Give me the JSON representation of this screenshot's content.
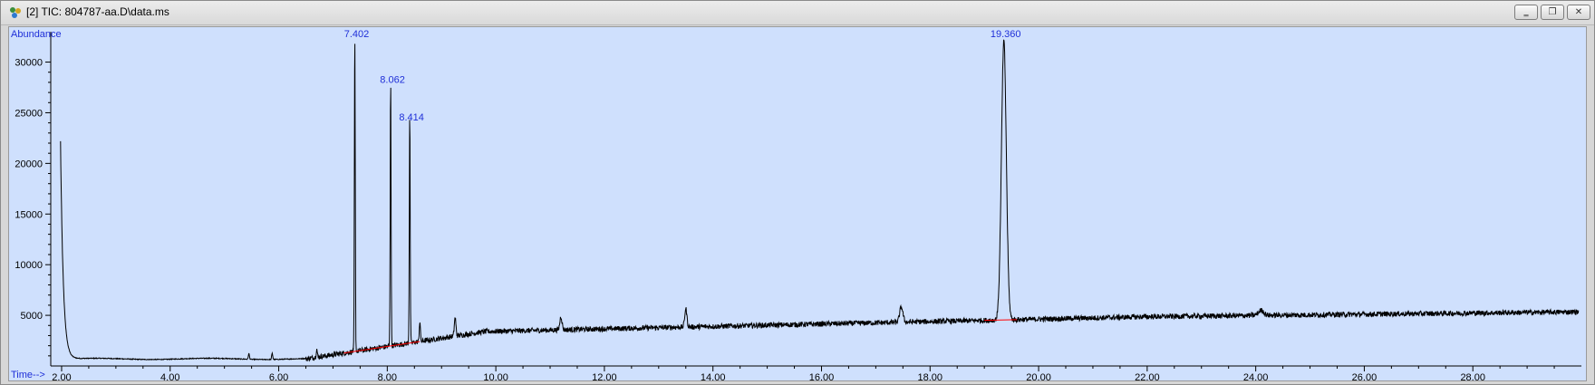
{
  "window": {
    "title": "[2] TIC: 804787-aa.D\\data.ms",
    "icon": "chromatogram-icon",
    "buttons": [
      "minimize",
      "restore",
      "close"
    ]
  },
  "colors": {
    "plot_bg": "#cfe0fd",
    "trace": "#000000",
    "baseline": "#ff0000",
    "labels": "#1f2fd8"
  },
  "chart_data": {
    "type": "line",
    "title": "",
    "xlabel": "Time-->",
    "ylabel": "Abundance",
    "xlim": [
      1.8,
      30.0
    ],
    "ylim": [
      0,
      33000
    ],
    "x_ticks": [
      "2.00",
      "4.00",
      "6.00",
      "8.00",
      "10.00",
      "12.00",
      "14.00",
      "16.00",
      "18.00",
      "20.00",
      "22.00",
      "24.00",
      "26.00",
      "28.00"
    ],
    "y_ticks": [
      "5000",
      "10000",
      "15000",
      "20000",
      "25000",
      "30000"
    ],
    "grid": false,
    "peaks": [
      {
        "time": 7.402,
        "label": "7.402",
        "abundance": 32000
      },
      {
        "time": 8.062,
        "label": "8.062",
        "abundance": 27500
      },
      {
        "time": 8.414,
        "label": "8.414",
        "abundance": 23800
      },
      {
        "time": 19.36,
        "label": "19.360",
        "abundance": 32000
      }
    ],
    "baseline_segments": [
      [
        7.2,
        8.6
      ],
      [
        19.0,
        19.6
      ]
    ]
  }
}
